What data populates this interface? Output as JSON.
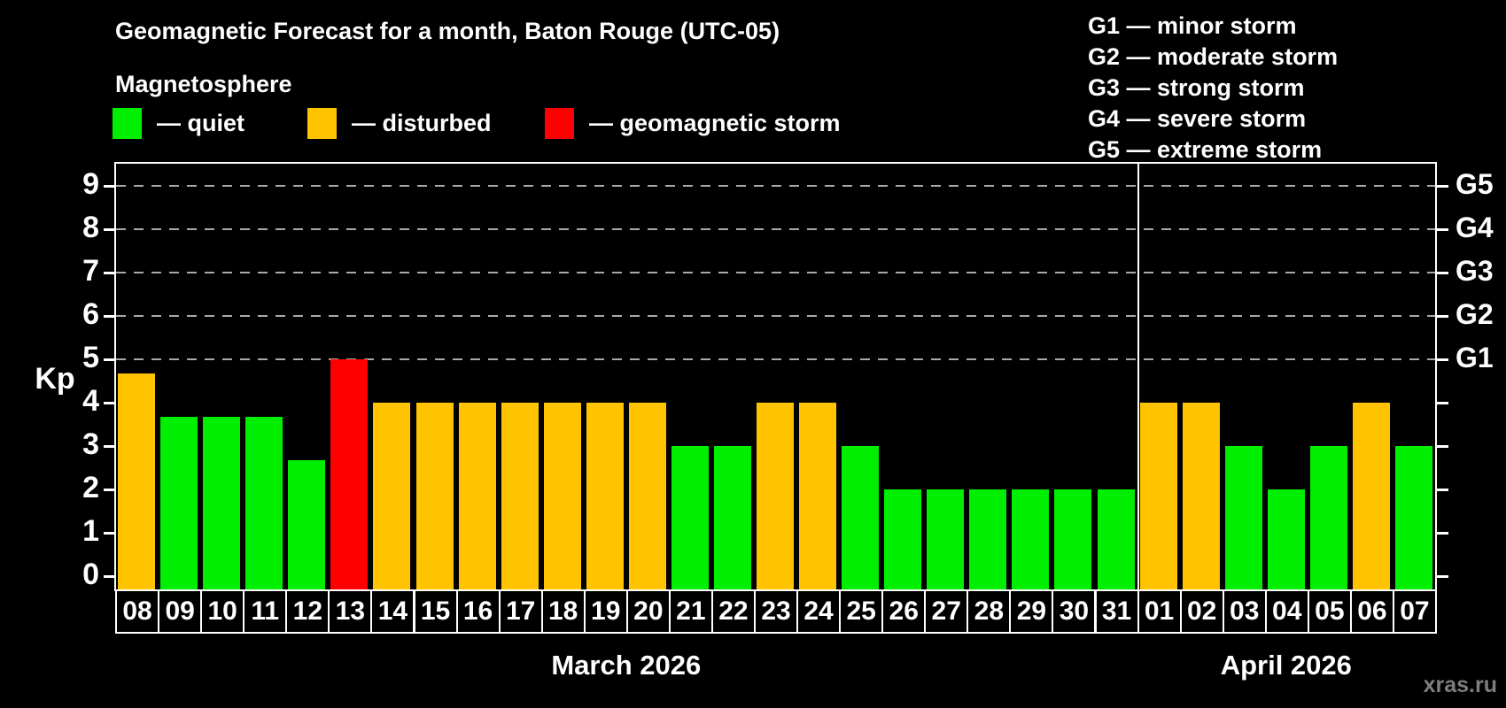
{
  "title": "Geomagnetic Forecast for a month, Baton Rouge (UTC-05)",
  "subtitle": "Magnetosphere",
  "legend": {
    "items": [
      {
        "key": "quiet",
        "label": "— quiet",
        "color": "#00ee00"
      },
      {
        "key": "disturbed",
        "label": "— disturbed",
        "color": "#ffc300"
      },
      {
        "key": "storm",
        "label": "— geomagnetic storm",
        "color": "#ff0000"
      }
    ]
  },
  "g_scale_legend": [
    "G1 — minor storm",
    "G2 — moderate storm",
    "G3 — strong storm",
    "G4 — severe storm",
    "G5 — extreme storm"
  ],
  "watermark": "xras.ru",
  "chart_data": {
    "type": "bar",
    "title": "Geomagnetic Forecast for a month, Baton Rouge (UTC-05)",
    "ylabel": "Kp",
    "ylim": [
      0,
      9
    ],
    "yticks": [
      0,
      1,
      2,
      3,
      4,
      5,
      6,
      7,
      8,
      9
    ],
    "gridlines_at": [
      5,
      6,
      7,
      8,
      9
    ],
    "grid": "dashed, horizontal only at G-storm levels",
    "legend_position": "top",
    "right_axis": [
      {
        "kp": 5,
        "label": "G1"
      },
      {
        "kp": 6,
        "label": "G2"
      },
      {
        "kp": 7,
        "label": "G3"
      },
      {
        "kp": 8,
        "label": "G4"
      },
      {
        "kp": 9,
        "label": "G5"
      }
    ],
    "status_colors": {
      "quiet": "#00ee00",
      "disturbed": "#ffc300",
      "storm": "#ff0000"
    },
    "months": [
      {
        "label": "March 2026",
        "days": [
          {
            "day": "08",
            "kp": 4.67,
            "status": "disturbed"
          },
          {
            "day": "09",
            "kp": 3.67,
            "status": "quiet"
          },
          {
            "day": "10",
            "kp": 3.67,
            "status": "quiet"
          },
          {
            "day": "11",
            "kp": 3.67,
            "status": "quiet"
          },
          {
            "day": "12",
            "kp": 2.67,
            "status": "quiet"
          },
          {
            "day": "13",
            "kp": 5,
            "status": "storm"
          },
          {
            "day": "14",
            "kp": 4,
            "status": "disturbed"
          },
          {
            "day": "15",
            "kp": 4,
            "status": "disturbed"
          },
          {
            "day": "16",
            "kp": 4,
            "status": "disturbed"
          },
          {
            "day": "17",
            "kp": 4,
            "status": "disturbed"
          },
          {
            "day": "18",
            "kp": 4,
            "status": "disturbed"
          },
          {
            "day": "19",
            "kp": 4,
            "status": "disturbed"
          },
          {
            "day": "20",
            "kp": 4,
            "status": "disturbed"
          },
          {
            "day": "21",
            "kp": 3,
            "status": "quiet"
          },
          {
            "day": "22",
            "kp": 3,
            "status": "quiet"
          },
          {
            "day": "23",
            "kp": 4,
            "status": "disturbed"
          },
          {
            "day": "24",
            "kp": 4,
            "status": "disturbed"
          },
          {
            "day": "25",
            "kp": 3,
            "status": "quiet"
          },
          {
            "day": "26",
            "kp": 2,
            "status": "quiet"
          },
          {
            "day": "27",
            "kp": 2,
            "status": "quiet"
          },
          {
            "day": "28",
            "kp": 2,
            "status": "quiet"
          },
          {
            "day": "29",
            "kp": 2,
            "status": "quiet"
          },
          {
            "day": "30",
            "kp": 2,
            "status": "quiet"
          },
          {
            "day": "31",
            "kp": 2,
            "status": "quiet"
          }
        ]
      },
      {
        "label": "April 2026",
        "days": [
          {
            "day": "01",
            "kp": 4,
            "status": "disturbed"
          },
          {
            "day": "02",
            "kp": 4,
            "status": "disturbed"
          },
          {
            "day": "03",
            "kp": 3,
            "status": "quiet"
          },
          {
            "day": "04",
            "kp": 2,
            "status": "quiet"
          },
          {
            "day": "05",
            "kp": 3,
            "status": "quiet"
          },
          {
            "day": "06",
            "kp": 4,
            "status": "disturbed"
          },
          {
            "day": "07",
            "kp": 3,
            "status": "quiet"
          }
        ]
      }
    ]
  }
}
